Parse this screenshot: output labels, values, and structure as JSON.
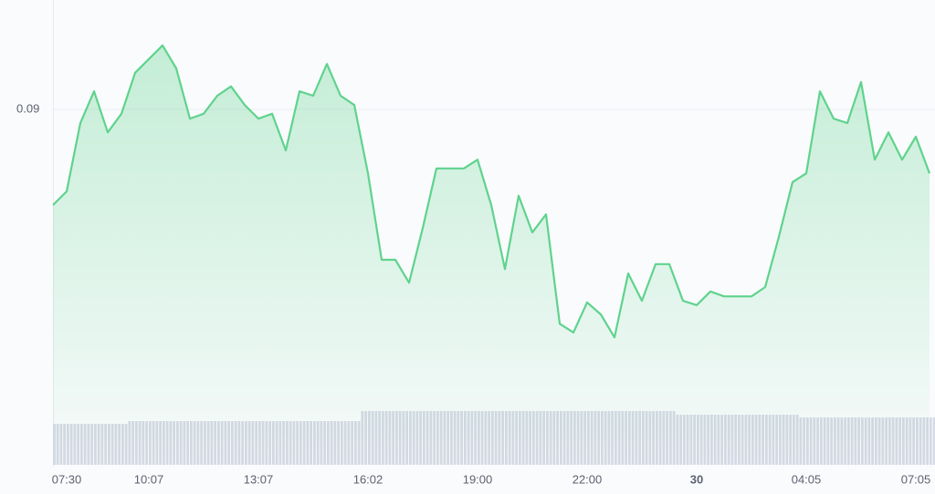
{
  "chart_data": {
    "type": "line",
    "categories": [
      null,
      "07:30",
      null,
      null,
      null,
      null,
      null,
      "10:07",
      null,
      null,
      null,
      null,
      null,
      null,
      null,
      "13:07",
      null,
      null,
      null,
      null,
      null,
      null,
      null,
      "16:02",
      null,
      null,
      null,
      null,
      null,
      null,
      null,
      "19:00",
      null,
      null,
      null,
      null,
      null,
      null,
      null,
      "22:00",
      null,
      null,
      null,
      null,
      null,
      null,
      null,
      "30",
      null,
      null,
      null,
      null,
      null,
      null,
      null,
      "04:05",
      null,
      null,
      null,
      null,
      null,
      null,
      null,
      "07:05",
      null
    ],
    "series": [
      {
        "name": "price",
        "color": "#5fd38d",
        "values": [
          0.08825,
          0.0885,
          0.08975,
          0.09033,
          0.08958,
          0.08992,
          0.09067,
          0.09092,
          0.09117,
          0.09075,
          0.08983,
          0.08992,
          0.09025,
          0.09042,
          0.09008,
          0.08983,
          0.08992,
          0.08925,
          0.09033,
          0.09025,
          0.09083,
          0.09025,
          0.09008,
          0.08883,
          0.08725,
          0.08725,
          0.08683,
          0.08783,
          0.08892,
          0.08892,
          0.08892,
          0.08908,
          0.08825,
          0.08708,
          0.08842,
          0.08775,
          0.08808,
          0.08608,
          0.08592,
          0.08647,
          0.08625,
          0.08583,
          0.087,
          0.0865,
          0.08717,
          0.08717,
          0.0865,
          0.08642,
          0.08667,
          0.08658,
          0.08658,
          0.08658,
          0.08675,
          0.08767,
          0.08867,
          0.08883,
          0.09033,
          0.08983,
          0.08975,
          0.0905,
          0.08908,
          0.08958,
          0.08908,
          0.0895,
          0.08883
        ]
      },
      {
        "name": "volume",
        "axis": "y2",
        "color": "#d6d9e6",
        "values": [
          45,
          45,
          45,
          45,
          45,
          45,
          48,
          48,
          48,
          48,
          48,
          48,
          48,
          48,
          48,
          48,
          48,
          48,
          48,
          48,
          48,
          48,
          48,
          59,
          59,
          59,
          59,
          59,
          59,
          59,
          59,
          59,
          59,
          59,
          59,
          59,
          59,
          59,
          59,
          59,
          59,
          59,
          59,
          59,
          59,
          59,
          55,
          55,
          55,
          55,
          55,
          55,
          55,
          55,
          55,
          52,
          52,
          52,
          52,
          52,
          52,
          52,
          52,
          52,
          52
        ]
      }
    ],
    "ylim": [
      0.0835,
      0.092
    ],
    "yticks": [
      0.09
    ],
    "y2lim": [
      0,
      100
    ],
    "grid": true
  }
}
